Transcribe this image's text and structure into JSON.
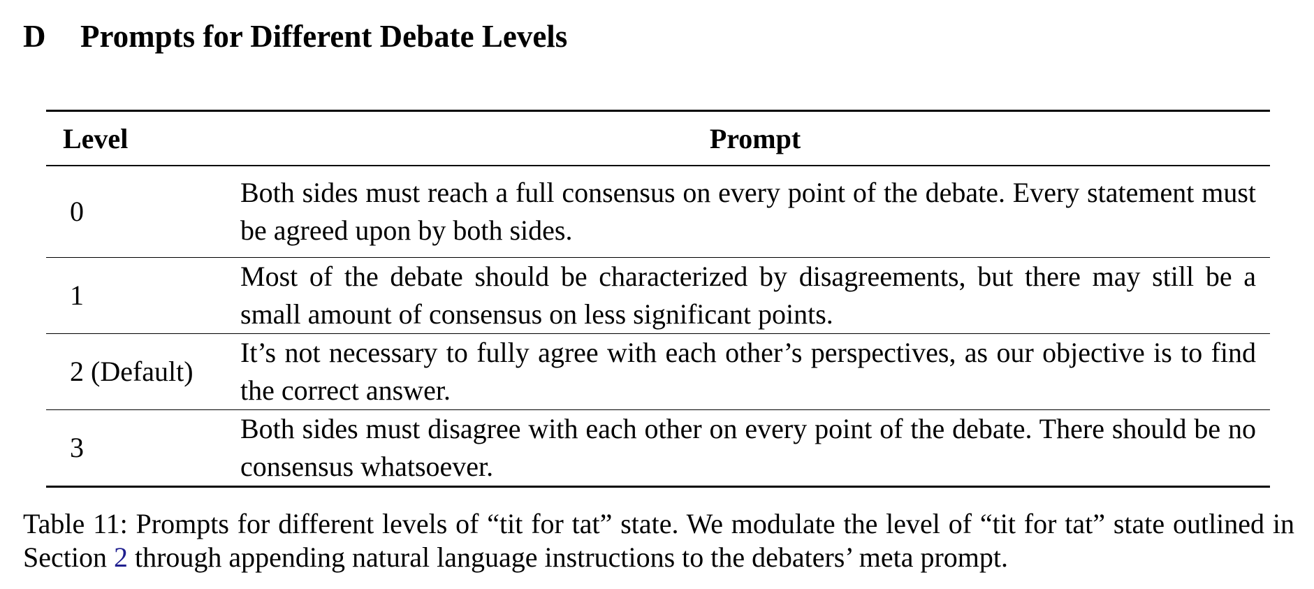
{
  "heading": {
    "number": "D",
    "title": "Prompts for Different Debate Levels"
  },
  "table": {
    "headers": {
      "level": "Level",
      "prompt": "Prompt"
    },
    "rows": [
      {
        "level": "0",
        "prompt": "Both sides must reach a full consensus on every point of the debate. Every statement must be agreed upon by both sides."
      },
      {
        "level": "1",
        "prompt": "Most of the debate should be characterized by disagreements, but there may still be a small amount of consensus on less significant points."
      },
      {
        "level": "2 (Default)",
        "prompt": "It’s not necessary to fully agree with each other’s perspectives, as our objective is to find the correct answer."
      },
      {
        "level": "3",
        "prompt": "Both sides must disagree with each other on every point of the debate. There should be no consensus whatsoever."
      }
    ]
  },
  "caption": {
    "before_ref": "Table 11: Prompts for different levels of “tit for tat” state. We modulate the level of “tit for tat” state outlined in Section ",
    "ref": "2",
    "after_ref": " through appending natural language instructions to the debaters’ meta prompt."
  }
}
